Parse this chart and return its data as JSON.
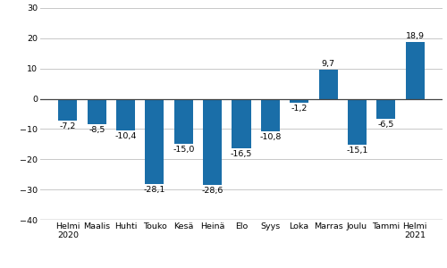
{
  "categories": [
    "Helmi\n2020",
    "Maalis",
    "Huhti",
    "Touko",
    "Kesä",
    "Heinä",
    "Elo",
    "Syys",
    "Loka",
    "Marras",
    "Joulu",
    "Tammi",
    "Helmi\n2021"
  ],
  "values": [
    -7.2,
    -8.5,
    -10.4,
    -28.1,
    -15.0,
    -28.6,
    -16.5,
    -10.8,
    -1.2,
    9.7,
    -15.1,
    -6.5,
    18.9
  ],
  "bar_color": "#1a6ea8",
  "ylim": [
    -40,
    30
  ],
  "yticks": [
    -40,
    -30,
    -20,
    -10,
    0,
    10,
    20,
    30
  ],
  "grid_color": "#c8c8c8",
  "background_color": "#ffffff",
  "value_fontsize": 6.8,
  "tick_fontsize": 6.8,
  "bar_width": 0.65
}
